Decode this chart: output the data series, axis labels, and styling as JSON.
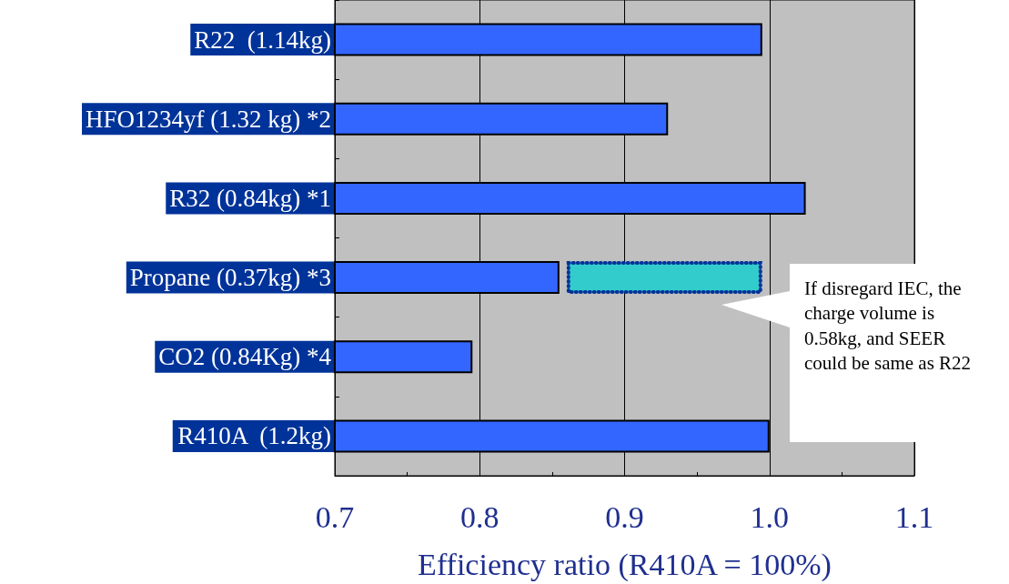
{
  "chart_data": {
    "type": "bar",
    "orientation": "horizontal",
    "xlabel": "Efficiency ratio (R410A = 100%)",
    "categories": [
      "R22  (1.14kg)",
      "HFO1234yf (1.32 kg) *2",
      "R32 (0.84kg) *1",
      "Propane (0.37kg) *3",
      "CO2 (0.84Kg) *4",
      "R410A  (1.2kg)"
    ],
    "series": [
      {
        "color": "#3366ff",
        "values": [
          0.995,
          0.93,
          1.025,
          0.855,
          0.795,
          1.0
        ]
      },
      {
        "color": "#33cccc",
        "line_style": "dotted",
        "base": [
          null,
          null,
          null,
          0.86,
          null,
          null
        ],
        "values": [
          null,
          null,
          null,
          0.135,
          null,
          null
        ]
      }
    ],
    "xlim": [
      0.7,
      1.1
    ],
    "xticks": [
      0.7,
      0.8,
      0.9,
      {
        "value": 1.0,
        "label": "1.0"
      },
      1.1
    ],
    "grid": "x",
    "annotations": [
      "If disregard IEC, the charge volume is 0.58kg, and SEER could be same as R22"
    ]
  }
}
